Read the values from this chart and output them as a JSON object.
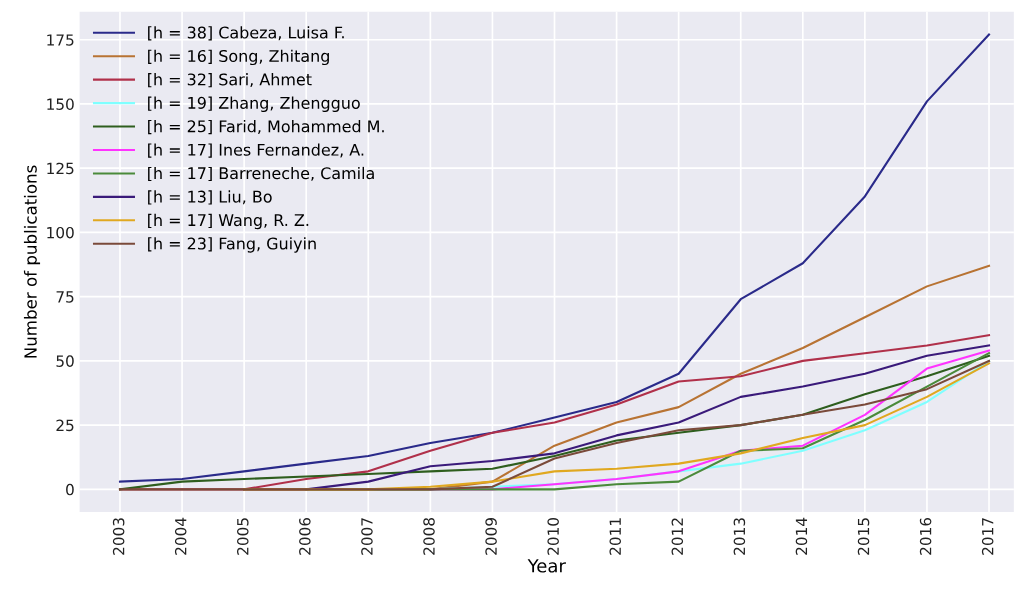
{
  "chart_data": {
    "type": "line",
    "xlabel": "Year",
    "ylabel": "Number of publications",
    "x": [
      2003,
      2004,
      2005,
      2006,
      2007,
      2008,
      2009,
      2010,
      2011,
      2012,
      2013,
      2014,
      2015,
      2016,
      2017
    ],
    "xlim": [
      2002.35,
      2017.4
    ],
    "xticks": [
      2003,
      2004,
      2005,
      2006,
      2007,
      2008,
      2009,
      2010,
      2011,
      2012,
      2013,
      2014,
      2015,
      2016,
      2017
    ],
    "ylim": [
      -8.85,
      185.85
    ],
    "yticks": [
      0,
      25,
      50,
      75,
      100,
      125,
      150,
      175
    ],
    "grid": true,
    "legend": "top left",
    "series": [
      {
        "name": "[h = 38] Cabeza, Luisa F.",
        "color": "#2a2a8a",
        "values": [
          3,
          4,
          7,
          10,
          13,
          18,
          22,
          28,
          34,
          45,
          74,
          88,
          114,
          151,
          177
        ]
      },
      {
        "name": "[h = 16] Song, Zhitang",
        "color": "#b87333",
        "values": [
          null,
          null,
          0,
          0,
          0,
          0,
          3,
          17,
          26,
          32,
          45,
          55,
          67,
          79,
          87
        ]
      },
      {
        "name": "[h = 32] Sari, Ahmet",
        "color": "#b0304a",
        "values": [
          0,
          0,
          0,
          4,
          7,
          15,
          22,
          26,
          33,
          42,
          44,
          50,
          53,
          56,
          60
        ]
      },
      {
        "name": "[h = 19] Zhang, Zhengguo",
        "color": "#7fffff",
        "values": [
          null,
          null,
          null,
          null,
          null,
          0,
          1,
          2,
          4,
          7,
          10,
          15,
          23,
          34,
          50
        ]
      },
      {
        "name": "[h = 25] Farid, Mohammed M.",
        "color": "#2e5e1e",
        "values": [
          0,
          3,
          4,
          5,
          6,
          7,
          8,
          13,
          19,
          22,
          25,
          29,
          37,
          44,
          52
        ]
      },
      {
        "name": "[h = 17] Ines Fernandez, A.",
        "color": "#ff33ff",
        "values": [
          null,
          null,
          null,
          null,
          null,
          0,
          0,
          2,
          4,
          7,
          15,
          17,
          29,
          47,
          54
        ]
      },
      {
        "name": "[h = 17] Barreneche, Camila",
        "color": "#4a8a3a",
        "values": [
          null,
          null,
          null,
          0,
          0,
          0,
          0,
          0,
          2,
          3,
          15,
          16,
          27,
          40,
          53
        ]
      },
      {
        "name": "[h = 13] Liu, Bo",
        "color": "#3a1a7a",
        "values": [
          null,
          null,
          0,
          0,
          3,
          9,
          11,
          14,
          21,
          26,
          36,
          40,
          45,
          52,
          56
        ]
      },
      {
        "name": "[h = 17] Wang, R. Z.",
        "color": "#e0a820",
        "values": [
          null,
          null,
          0,
          0,
          0,
          1,
          3,
          7,
          8,
          10,
          14,
          20,
          25,
          36,
          49
        ]
      },
      {
        "name": "[h = 23] Fang, Guiyin",
        "color": "#7a4a3a",
        "values": [
          0,
          0,
          0,
          0,
          0,
          0,
          1,
          12,
          18,
          23,
          25,
          29,
          33,
          39,
          50
        ]
      }
    ]
  }
}
